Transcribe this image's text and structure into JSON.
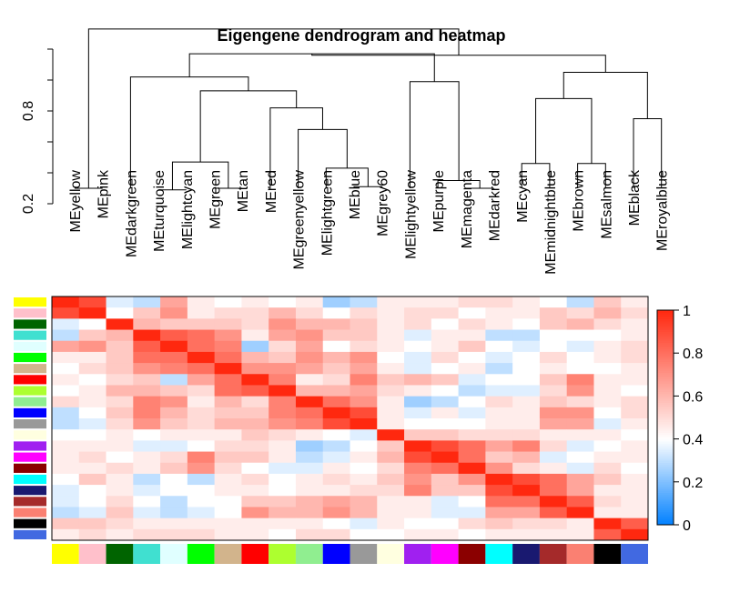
{
  "chart_data": {
    "type": "heatmap",
    "title": "Eigengene dendrogram and heatmap",
    "modules": [
      "MEyellow",
      "MEpink",
      "MEdarkgreen",
      "MEturquoise",
      "MElightcyan",
      "MEgreen",
      "MEtan",
      "MEred",
      "MEgreenyellow",
      "MElightgreen",
      "MEblue",
      "MEgrey60",
      "MElightyellow",
      "MEpurple",
      "MEmagenta",
      "MEdarkred",
      "MEcyan",
      "MEmidnightblue",
      "MEbrown",
      "MEsalmon",
      "MEblack",
      "MEroyalblue"
    ],
    "colors": [
      "#ffff00",
      "#ffc0cb",
      "#006400",
      "#40e0d0",
      "#e0ffff",
      "#00ff00",
      "#d2b48c",
      "#ff0000",
      "#adff2f",
      "#90ee90",
      "#0000ff",
      "#999999",
      "#ffffe0",
      "#a020f0",
      "#ff00ff",
      "#8b0000",
      "#00ffff",
      "#191970",
      "#a52a2a",
      "#fa8072",
      "#000000",
      "#4169e1"
    ],
    "dendrogram": {
      "yaxis_ticks": [
        "0.2",
        "0.8"
      ],
      "ylim": [
        0.2,
        1.2
      ],
      "merges": [
        [
          -1,
          -2,
          0.3
        ],
        [
          -4,
          -5,
          0.29
        ],
        [
          -6,
          -7,
          0.3
        ],
        [
          1,
          2,
          0.47
        ],
        [
          -11,
          -12,
          0.31
        ],
        [
          -10,
          4,
          0.43
        ],
        [
          -9,
          5,
          0.68
        ],
        [
          -8,
          6,
          0.82
        ],
        [
          3,
          7,
          0.93
        ],
        [
          -3,
          8,
          1.02
        ],
        [
          -15,
          -16,
          0.3
        ],
        [
          -14,
          10,
          0.35
        ],
        [
          -13,
          11,
          0.99
        ],
        [
          9,
          12,
          1.17
        ],
        [
          -21,
          -22,
          0.75
        ],
        [
          -19,
          -20,
          0.46
        ],
        [
          -17,
          -18,
          0.46
        ],
        [
          16,
          15,
          0.88
        ],
        [
          14,
          17,
          1.05
        ],
        [
          13,
          18,
          1.16
        ],
        [
          0,
          19,
          1.33
        ]
      ]
    },
    "heatmap": {
      "zlim": [
        0,
        1
      ],
      "legend_ticks": [
        "0",
        "0.2",
        "0.4",
        "0.6",
        "0.8",
        "1"
      ],
      "values": [
        [
          1.0,
          0.9,
          0.35,
          0.3,
          0.65,
          0.45,
          0.4,
          0.45,
          0.4,
          0.45,
          0.25,
          0.3,
          0.45,
          0.45,
          0.45,
          0.5,
          0.5,
          0.45,
          0.4,
          0.3,
          0.55,
          0.45
        ],
        [
          0.9,
          1.0,
          0.4,
          0.55,
          0.7,
          0.45,
          0.5,
          0.5,
          0.6,
          0.5,
          0.4,
          0.5,
          0.45,
          0.5,
          0.5,
          0.4,
          0.45,
          0.45,
          0.55,
          0.5,
          0.6,
          0.5
        ],
        [
          0.35,
          0.4,
          1.0,
          0.6,
          0.55,
          0.55,
          0.55,
          0.5,
          0.7,
          0.6,
          0.6,
          0.55,
          0.45,
          0.5,
          0.4,
          0.5,
          0.45,
          0.4,
          0.55,
          0.6,
          0.5,
          0.45
        ],
        [
          0.3,
          0.55,
          0.6,
          1.0,
          0.85,
          0.8,
          0.7,
          0.45,
          0.65,
          0.7,
          0.55,
          0.55,
          0.45,
          0.35,
          0.45,
          0.45,
          0.3,
          0.3,
          0.4,
          0.4,
          0.4,
          0.45
        ],
        [
          0.65,
          0.7,
          0.55,
          0.85,
          1.0,
          0.8,
          0.75,
          0.25,
          0.5,
          0.65,
          0.4,
          0.5,
          0.45,
          0.4,
          0.45,
          0.55,
          0.4,
          0.35,
          0.4,
          0.35,
          0.45,
          0.5
        ],
        [
          0.45,
          0.45,
          0.55,
          0.8,
          0.8,
          1.0,
          0.8,
          0.6,
          0.55,
          0.7,
          0.6,
          0.7,
          0.4,
          0.35,
          0.5,
          0.4,
          0.35,
          0.4,
          0.5,
          0.4,
          0.45,
          0.5
        ],
        [
          0.4,
          0.5,
          0.55,
          0.7,
          0.75,
          0.8,
          1.0,
          0.7,
          0.7,
          0.65,
          0.55,
          0.65,
          0.45,
          0.35,
          0.4,
          0.45,
          0.3,
          0.4,
          0.45,
          0.4,
          0.4,
          0.45
        ],
        [
          0.45,
          0.4,
          0.5,
          0.55,
          0.3,
          0.65,
          0.8,
          1.0,
          0.75,
          0.45,
          0.5,
          0.75,
          0.55,
          0.6,
          0.55,
          0.35,
          0.4,
          0.4,
          0.55,
          0.75,
          0.45,
          0.45
        ],
        [
          0.4,
          0.45,
          0.6,
          0.6,
          0.55,
          0.5,
          0.8,
          0.85,
          1.0,
          0.6,
          0.6,
          0.65,
          0.5,
          0.45,
          0.4,
          0.3,
          0.35,
          0.35,
          0.5,
          0.7,
          0.45,
          0.4
        ],
        [
          0.5,
          0.45,
          0.5,
          0.75,
          0.7,
          0.45,
          0.6,
          0.5,
          0.75,
          1.0,
          0.8,
          0.7,
          0.45,
          0.25,
          0.3,
          0.4,
          0.5,
          0.45,
          0.55,
          0.5,
          0.45,
          0.5
        ],
        [
          0.3,
          0.4,
          0.55,
          0.75,
          0.6,
          0.5,
          0.55,
          0.55,
          0.75,
          0.8,
          1.0,
          0.9,
          0.45,
          0.35,
          0.45,
          0.35,
          0.45,
          0.45,
          0.7,
          0.7,
          0.4,
          0.5
        ],
        [
          0.3,
          0.35,
          0.5,
          0.7,
          0.55,
          0.5,
          0.6,
          0.6,
          0.7,
          0.75,
          0.9,
          1.0,
          0.45,
          0.4,
          0.4,
          0.4,
          0.45,
          0.45,
          0.65,
          0.65,
          0.35,
          0.45
        ],
        [
          0.4,
          0.4,
          0.45,
          0.4,
          0.45,
          0.45,
          0.45,
          0.55,
          0.5,
          0.45,
          0.4,
          0.35,
          1.0,
          0.55,
          0.55,
          0.5,
          0.5,
          0.5,
          0.45,
          0.45,
          0.45,
          0.4
        ],
        [
          0.45,
          0.45,
          0.45,
          0.35,
          0.35,
          0.4,
          0.5,
          0.5,
          0.45,
          0.25,
          0.3,
          0.4,
          0.55,
          1.0,
          0.9,
          0.8,
          0.65,
          0.75,
          0.5,
          0.35,
          0.4,
          0.45
        ],
        [
          0.45,
          0.5,
          0.4,
          0.45,
          0.5,
          0.75,
          0.55,
          0.55,
          0.45,
          0.3,
          0.35,
          0.45,
          0.6,
          0.9,
          1.0,
          0.8,
          0.55,
          0.6,
          0.35,
          0.4,
          0.45,
          0.45
        ],
        [
          0.45,
          0.45,
          0.5,
          0.45,
          0.55,
          0.7,
          0.5,
          0.4,
          0.35,
          0.35,
          0.45,
          0.4,
          0.5,
          0.75,
          0.8,
          1.0,
          0.7,
          0.5,
          0.45,
          0.35,
          0.5,
          0.4
        ],
        [
          0.4,
          0.55,
          0.45,
          0.3,
          0.4,
          0.3,
          0.45,
          0.5,
          0.4,
          0.45,
          0.5,
          0.45,
          0.55,
          0.7,
          0.55,
          0.7,
          1.0,
          0.9,
          0.8,
          0.65,
          0.55,
          0.45
        ],
        [
          0.35,
          0.4,
          0.45,
          0.35,
          0.4,
          0.4,
          0.45,
          0.45,
          0.4,
          0.45,
          0.45,
          0.5,
          0.5,
          0.75,
          0.55,
          0.55,
          0.9,
          1.0,
          0.8,
          0.65,
          0.45,
          0.45
        ],
        [
          0.35,
          0.4,
          0.5,
          0.4,
          0.3,
          0.4,
          0.4,
          0.55,
          0.55,
          0.6,
          0.65,
          0.6,
          0.45,
          0.45,
          0.35,
          0.4,
          0.8,
          0.8,
          1.0,
          0.85,
          0.5,
          0.45
        ],
        [
          0.3,
          0.35,
          0.55,
          0.35,
          0.3,
          0.35,
          0.4,
          0.7,
          0.6,
          0.6,
          0.7,
          0.6,
          0.45,
          0.45,
          0.35,
          0.35,
          0.65,
          0.65,
          0.85,
          1.0,
          0.45,
          0.45
        ],
        [
          0.55,
          0.55,
          0.5,
          0.45,
          0.45,
          0.45,
          0.45,
          0.45,
          0.45,
          0.45,
          0.4,
          0.35,
          0.45,
          0.4,
          0.4,
          0.5,
          0.55,
          0.5,
          0.5,
          0.45,
          1.0,
          0.85
        ],
        [
          0.45,
          0.5,
          0.45,
          0.5,
          0.5,
          0.5,
          0.45,
          0.45,
          0.4,
          0.5,
          0.5,
          0.4,
          0.4,
          0.45,
          0.45,
          0.4,
          0.45,
          0.45,
          0.45,
          0.45,
          0.85,
          1.0
        ]
      ]
    }
  }
}
